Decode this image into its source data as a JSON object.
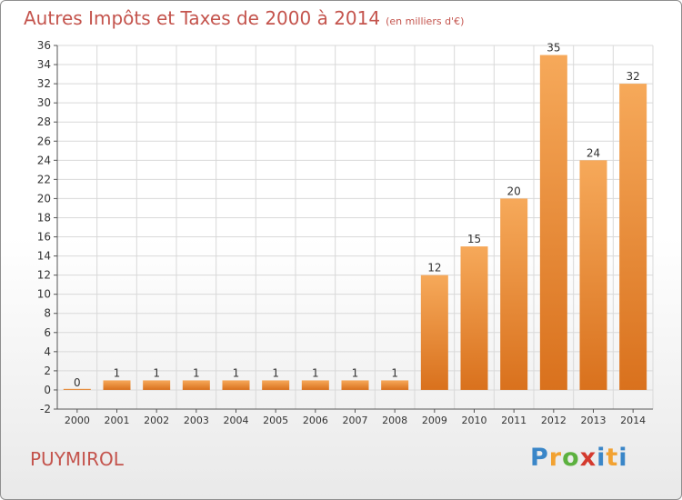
{
  "header": {
    "title": "Autres Impôts et Taxes de 2000 à 2014",
    "subtitle": "(en milliers d'€)"
  },
  "footer": {
    "town": "PUYMIROL",
    "logo_text": "Proxiti"
  },
  "colors": {
    "title": "#c4544d",
    "bar_light": "#f6a95a",
    "bar_dark": "#d9711d",
    "grid": "#d9d9d9"
  },
  "chart_data": {
    "type": "bar",
    "title": "Autres Impôts et Taxes de 2000 à 2014",
    "subtitle": "(en milliers d'€)",
    "xlabel": "",
    "ylabel": "",
    "categories": [
      "2000",
      "2001",
      "2002",
      "2003",
      "2004",
      "2005",
      "2006",
      "2007",
      "2008",
      "2009",
      "2010",
      "2011",
      "2012",
      "2013",
      "2014"
    ],
    "values": [
      0,
      1,
      1,
      1,
      1,
      1,
      1,
      1,
      1,
      12,
      15,
      20,
      35,
      24,
      32
    ],
    "data_labels": [
      "0",
      "1",
      "1",
      "1",
      "1",
      "1",
      "1",
      "1",
      "1",
      "12",
      "15",
      "20",
      "35",
      "24",
      "32"
    ],
    "ylim": [
      -2,
      36
    ],
    "yticks": [
      -2,
      0,
      2,
      4,
      6,
      8,
      10,
      12,
      14,
      16,
      18,
      20,
      22,
      24,
      26,
      28,
      30,
      32,
      34,
      36
    ],
    "grid": true,
    "legend": "none"
  }
}
